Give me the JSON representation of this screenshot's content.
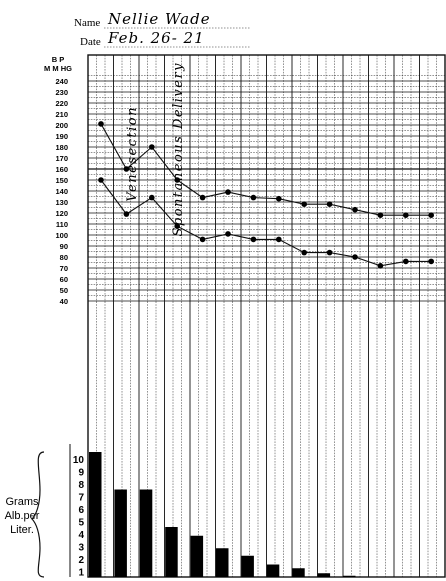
{
  "header": {
    "name_label": "Name",
    "name_value": "Nellie Wade",
    "date_label": "Date",
    "date_value": "Feb. 26- 21"
  },
  "chart_data": {
    "type": "line",
    "y_axis_title": [
      "B P",
      "M M HG"
    ],
    "bp_ticks": [
      "240",
      "230",
      "220",
      "210",
      "200",
      "190",
      "180",
      "170",
      "160",
      "150",
      "140",
      "130",
      "120",
      "110",
      "100",
      "90"
    ],
    "alb_ticks": [
      "10",
      "9",
      "8",
      "7",
      "6",
      "5",
      "4",
      "3",
      "2",
      "1"
    ],
    "alb_secondary_ticks": [
      "80",
      "70",
      "60",
      "50",
      "40"
    ],
    "ylim": [
      40,
      245
    ],
    "x_count": 14,
    "annotations": [
      "Venesection",
      "Spontaneous Delivery"
    ],
    "series": [
      {
        "role": "systolic",
        "x": [
          0,
          1,
          2,
          3,
          4,
          5,
          6,
          7,
          8,
          9,
          10,
          11,
          12,
          13
        ],
        "y": [
          201,
          160,
          180,
          150,
          134,
          139,
          134,
          133,
          128,
          128,
          123,
          118,
          118,
          118
        ]
      },
      {
        "role": "diastolic",
        "x": [
          0,
          1,
          2,
          3,
          4,
          5,
          6,
          7,
          8,
          9,
          10,
          11,
          12,
          13
        ],
        "y": [
          150,
          119,
          134,
          108,
          96,
          101,
          96,
          96,
          84,
          84,
          80,
          72,
          76,
          76
        ]
      }
    ],
    "bars": {
      "legend": [
        "Grams",
        "Alb.per",
        "Liter."
      ],
      "x": [
        0,
        1,
        2,
        3,
        4,
        5,
        6,
        7,
        8,
        9,
        10
      ],
      "values": [
        10,
        7,
        7,
        4,
        3.3,
        2.3,
        1.7,
        1,
        0.7,
        0.3,
        0.1
      ]
    }
  }
}
